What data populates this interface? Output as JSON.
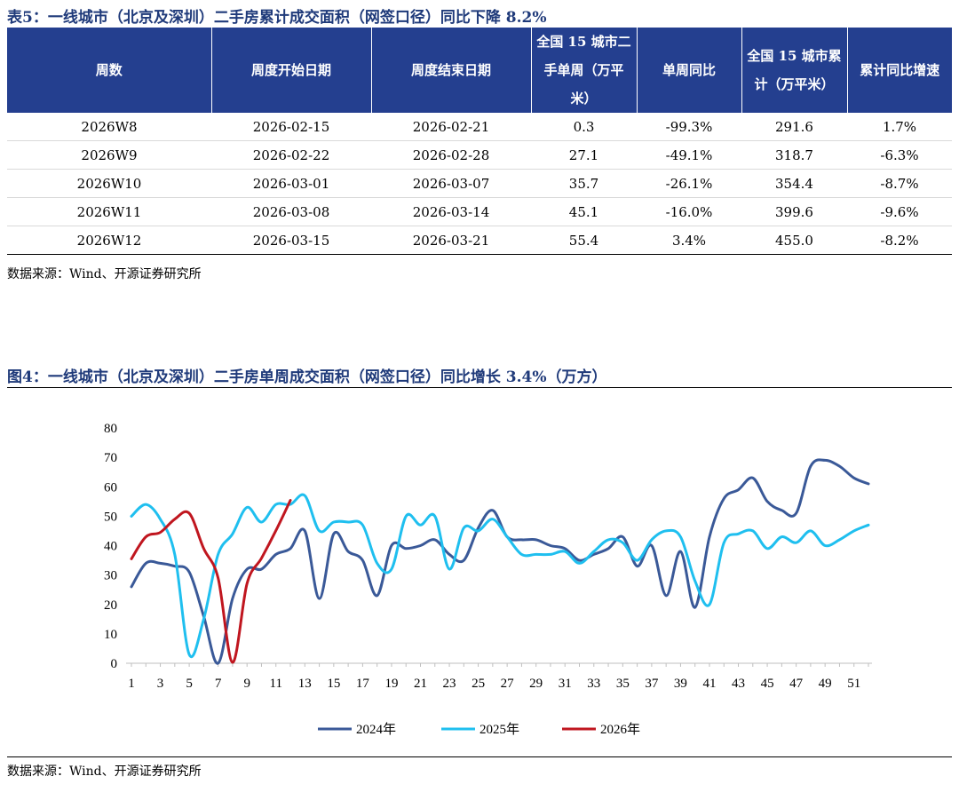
{
  "table": {
    "title": "表5：一线城市（北京及深圳）二手房累计成交面积（网签口径）同比下降 8.2%",
    "headers": [
      "周数",
      "周度开始日期",
      "周度结束日期",
      "全国 15 城市二手单周（万平米）",
      "单周同比",
      "全国 15 城市累计（万平米）",
      "累计同比增速"
    ],
    "rows": [
      [
        "2026W8",
        "2026-02-15",
        "2026-02-21",
        "0.3",
        "-99.3%",
        "291.6",
        "1.7%"
      ],
      [
        "2026W9",
        "2026-02-22",
        "2026-02-28",
        "27.1",
        "-49.1%",
        "318.7",
        "-6.3%"
      ],
      [
        "2026W10",
        "2026-03-01",
        "2026-03-07",
        "35.7",
        "-26.1%",
        "354.4",
        "-8.7%"
      ],
      [
        "2026W11",
        "2026-03-08",
        "2026-03-14",
        "45.1",
        "-16.0%",
        "399.6",
        "-9.6%"
      ],
      [
        "2026W12",
        "2026-03-15",
        "2026-03-21",
        "55.4",
        "3.4%",
        "455.0",
        "-8.2%"
      ]
    ],
    "source": "数据来源：Wind、开源证券研究所",
    "header_color": "#243f8f"
  },
  "chart_title": "图4：一线城市（北京及深圳）二手房单周成交面积（网签口径）同比增长 3.4%（万方）",
  "chart_source": "数据来源：Wind、开源证券研究所",
  "chart_data": {
    "type": "line",
    "title": "图4：一线城市（北京及深圳）二手房单周成交面积（网签口径）同比增长 3.4%（万方）",
    "xlabel": "",
    "ylabel": "",
    "xlim": [
      1,
      52
    ],
    "ylim": [
      0,
      80
    ],
    "yticks": [
      0,
      10,
      20,
      30,
      40,
      50,
      60,
      70,
      80
    ],
    "xticks": [
      1,
      3,
      5,
      7,
      9,
      11,
      13,
      15,
      17,
      19,
      21,
      23,
      25,
      27,
      29,
      31,
      33,
      35,
      37,
      39,
      41,
      43,
      45,
      47,
      49,
      51
    ],
    "grid": false,
    "legend_position": "bottom",
    "series": [
      {
        "name": "2024年",
        "color": "#3a5998",
        "x": [
          1,
          2,
          3,
          4,
          5,
          6,
          7,
          8,
          9,
          10,
          11,
          12,
          13,
          14,
          15,
          16,
          17,
          18,
          19,
          20,
          21,
          22,
          23,
          24,
          25,
          26,
          27,
          28,
          29,
          30,
          31,
          32,
          33,
          34,
          35,
          36,
          37,
          38,
          39,
          40,
          41,
          42,
          43,
          44,
          45,
          46,
          47,
          48,
          49,
          50,
          51,
          52
        ],
        "values": [
          26,
          34,
          34,
          33,
          31,
          16,
          0,
          22,
          32,
          32,
          37,
          39,
          45,
          22,
          44,
          38,
          35,
          23,
          40,
          39,
          40,
          42,
          37,
          35,
          46,
          52,
          43,
          42,
          42,
          40,
          39,
          35,
          37,
          39,
          43,
          33,
          40,
          23,
          38,
          19,
          43,
          56,
          59,
          63,
          55,
          52,
          51,
          67,
          69,
          67,
          63,
          61
        ]
      },
      {
        "name": "2025年",
        "color": "#1fbfef",
        "x": [
          1,
          2,
          3,
          4,
          5,
          6,
          7,
          8,
          9,
          10,
          11,
          12,
          13,
          14,
          15,
          16,
          17,
          18,
          19,
          20,
          21,
          22,
          23,
          24,
          25,
          26,
          27,
          28,
          29,
          30,
          31,
          32,
          33,
          34,
          35,
          36,
          37,
          38,
          39,
          40,
          41,
          42,
          43,
          44,
          45,
          46,
          47,
          48,
          49,
          50,
          51,
          52
        ],
        "values": [
          50,
          54,
          49,
          37,
          3,
          15,
          37,
          44,
          53,
          48,
          54,
          54,
          57,
          45,
          48,
          48,
          47,
          34,
          32,
          50,
          47,
          50,
          32,
          46,
          45,
          49,
          43,
          37,
          37,
          37,
          38,
          34,
          38,
          42,
          41,
          35,
          42,
          45,
          43,
          28,
          20,
          41,
          44,
          45,
          39,
          43,
          41,
          45,
          40,
          42,
          45,
          47
        ]
      },
      {
        "name": "2026年",
        "color": "#c0161f",
        "x": [
          1,
          2,
          3,
          4,
          5,
          6,
          7,
          8,
          9,
          10,
          11,
          12
        ],
        "values": [
          35.5,
          43,
          44.5,
          49,
          51,
          39,
          29,
          0.3,
          27.1,
          35.7,
          45.1,
          55.4
        ]
      }
    ]
  }
}
